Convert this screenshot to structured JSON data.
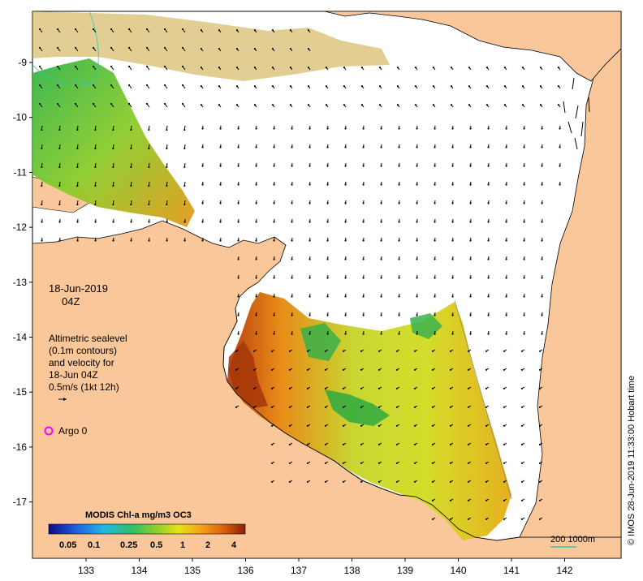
{
  "map": {
    "date": "18-Jun-2019",
    "time": "04Z",
    "legend_lines": [
      "Altimetric sealevel",
      "(0.1m contours)",
      "and velocity for",
      "18-Jun 04Z",
      "0.5m/s (1kt 12h)"
    ],
    "argo_label": "Argo 0",
    "colorbar_title": "MODIS Chl-a mg/m3 OC3",
    "colorbar_ticks": [
      "0.05",
      "0.1",
      "0.25",
      "0.5",
      "1",
      "2",
      "4"
    ],
    "scale_label": "200  1000m",
    "credit": "© IMOS 28-Jun-2019 11:33:00 Hobart time",
    "lon_ticks": [
      "133",
      "134",
      "135",
      "136",
      "137",
      "138",
      "139",
      "140",
      "141",
      "142"
    ],
    "lat_ticks": [
      "-9",
      "-10",
      "-11",
      "-12",
      "-13",
      "-14",
      "-15",
      "-16",
      "-17"
    ],
    "colors": {
      "land": "#f9c79a",
      "ocean": "#ffffff",
      "argo_marker": "#ff00ff",
      "scale_line": "#34c7b1",
      "colorbar": [
        "#0a0a8c",
        "#1f5fe0",
        "#21b8e8",
        "#2fbe6a",
        "#8fd02a",
        "#e8e21a",
        "#f2a018",
        "#d9600e",
        "#8e1e08"
      ]
    }
  }
}
